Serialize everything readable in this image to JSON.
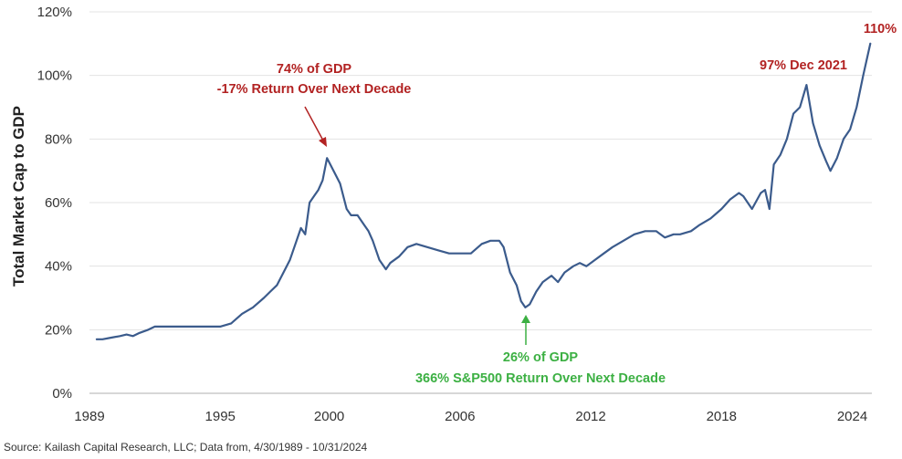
{
  "chart_data": {
    "type": "line",
    "title": "",
    "ylabel": "Total Market Cap to GDP",
    "xlabel": "",
    "ylim": [
      0,
      120
    ],
    "xlim": [
      1989,
      2024.9
    ],
    "grid": "horizontal",
    "y_ticks": [
      "0%",
      "20%",
      "40%",
      "60%",
      "80%",
      "100%",
      "120%"
    ],
    "x_ticks": [
      "1989",
      "1995",
      "2000",
      "2006",
      "2012",
      "2018",
      "2024"
    ],
    "series": [
      {
        "name": "Total Market Cap to GDP",
        "color": "#3b5b8c",
        "x": [
          1989.33,
          1989.6,
          1990.0,
          1990.4,
          1990.7,
          1991.0,
          1991.3,
          1991.7,
          1992.0,
          1992.5,
          1993.0,
          1993.5,
          1994.0,
          1994.5,
          1995.0,
          1995.5,
          1996.0,
          1996.5,
          1997.0,
          1997.3,
          1997.6,
          1997.9,
          1998.2,
          1998.5,
          1998.7,
          1998.9,
          1999.1,
          1999.3,
          1999.5,
          1999.7,
          1999.9,
          2000.2,
          2000.5,
          2000.8,
          2001.0,
          2001.3,
          2001.6,
          2001.8,
          2002.0,
          2002.3,
          2002.6,
          2002.8,
          2003.2,
          2003.6,
          2004.0,
          2004.5,
          2005.0,
          2005.5,
          2006.0,
          2006.5,
          2007.0,
          2007.4,
          2007.8,
          2008.0,
          2008.3,
          2008.6,
          2008.8,
          2009.0,
          2009.2,
          2009.5,
          2009.8,
          2010.2,
          2010.5,
          2010.8,
          2011.2,
          2011.5,
          2011.8,
          2012.2,
          2012.6,
          2013.0,
          2013.5,
          2014.0,
          2014.5,
          2015.0,
          2015.4,
          2015.8,
          2016.1,
          2016.6,
          2017.0,
          2017.5,
          2018.0,
          2018.4,
          2018.8,
          2019.0,
          2019.4,
          2019.8,
          2020.0,
          2020.2,
          2020.4,
          2020.7,
          2021.0,
          2021.3,
          2021.6,
          2021.9,
          2022.2,
          2022.5,
          2022.8,
          2023.0,
          2023.3,
          2023.6,
          2023.9,
          2024.2,
          2024.5,
          2024.83
        ],
        "values": [
          17,
          17,
          17.5,
          18,
          18.5,
          18,
          19,
          20,
          21,
          21,
          21,
          21,
          21,
          21,
          21,
          22,
          25,
          27,
          30,
          32,
          34,
          38,
          42,
          48,
          52,
          50,
          60,
          62,
          64,
          67,
          74,
          70,
          66,
          58,
          56,
          56,
          53,
          51,
          48,
          42,
          39,
          41,
          43,
          46,
          47,
          46,
          45,
          44,
          44,
          44,
          47,
          48,
          48,
          46,
          38,
          34,
          29,
          27,
          28,
          32,
          35,
          37,
          35,
          38,
          40,
          41,
          40,
          42,
          44,
          46,
          48,
          50,
          51,
          51,
          49,
          50,
          50,
          51,
          53,
          55,
          58,
          61,
          63,
          62,
          58,
          63,
          64,
          58,
          72,
          75,
          80,
          88,
          90,
          97,
          85,
          78,
          73,
          70,
          74,
          80,
          83,
          90,
          100,
          110
        ]
      }
    ],
    "annotations": [
      {
        "line1": "74% of GDP",
        "line2": "-17% Return Over Next Decade",
        "color": "#b22222",
        "point": [
          1999.9,
          74
        ]
      },
      {
        "line1": "26% of GDP",
        "line2": "366% S&P500 Return Over Next Decade",
        "color": "#3cb043",
        "point": [
          2008.8,
          26
        ]
      },
      {
        "line1": "97% Dec 2021",
        "color": "#b22222",
        "point": [
          2021.9,
          97
        ]
      },
      {
        "line1": "110%",
        "color": "#b22222",
        "point": [
          2024.83,
          110
        ]
      }
    ],
    "source": "Source: Kailash Capital Research, LLC; Data from, 4/30/1989 - 10/31/2024"
  }
}
